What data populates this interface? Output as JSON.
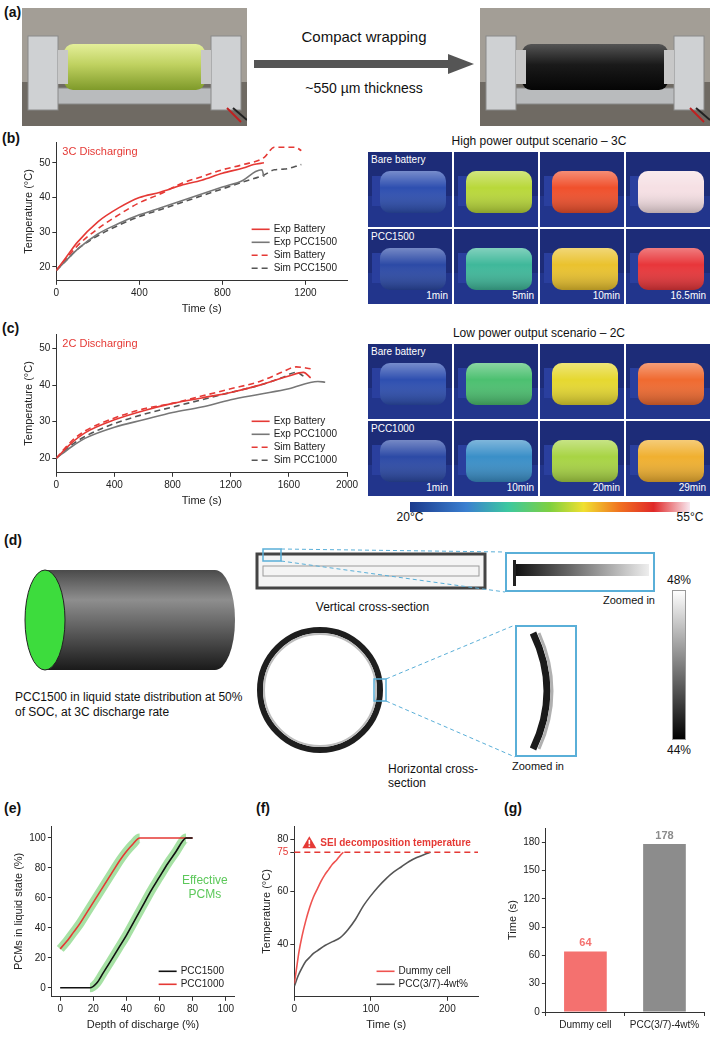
{
  "figure": {
    "a": {
      "panel": "(a)",
      "arrow_text": "Compact wrapping",
      "thickness": "~550 µm thickness"
    },
    "b_images": {
      "title": "High power output scenario – 3C",
      "rows": [
        "Bare battery",
        "PCC1500"
      ],
      "times": [
        "1min",
        "5min",
        "10min",
        "16.5min"
      ]
    },
    "c_images": {
      "title": "Low power output scenario – 2C",
      "rows": [
        "Bare battery",
        "PCC1000"
      ],
      "times": [
        "1min",
        "10min",
        "20min",
        "29min"
      ]
    },
    "colorbar": {
      "range": [
        20,
        55
      ],
      "ticks": [
        {
          "value": 20,
          "label": "20°C"
        },
        {
          "value": 55,
          "label": "55°C"
        }
      ]
    },
    "d": {
      "panel": "(d)",
      "caption": "PCC1500 in liquid state distribution at 50% of SOC, at 3C discharge rate",
      "vertical": "Vertical cross-section",
      "horizontal": "Horizontal cross-section",
      "zoom": "Zoomed in",
      "colorbar": {
        "range": [
          44,
          48
        ],
        "ticks": [
          {
            "value": 48,
            "label": "48%"
          },
          {
            "value": 44,
            "label": "44%"
          }
        ]
      }
    }
  },
  "chart_data": [
    {
      "panel": "(b)",
      "type": "line",
      "title": "3C Discharging",
      "xlabel": "Time (s)",
      "ylabel": "Temperature (°C)",
      "xlim": [
        0,
        1400
      ],
      "xticks": [
        0,
        400,
        800,
        1200
      ],
      "ylim": [
        16,
        56
      ],
      "yticks": [
        20,
        30,
        40,
        50
      ],
      "grid": false,
      "legend": "bottom right",
      "series": [
        {
          "name": "Exp Battery",
          "color": "#e53935",
          "line_style": "solid",
          "x": [
            0,
            50,
            100,
            200,
            300,
            400,
            500,
            600,
            700,
            800,
            900,
            950,
            1000
          ],
          "values": [
            19,
            23,
            27,
            33,
            37,
            40,
            41.5,
            43.5,
            45,
            47,
            48.5,
            49.5,
            50
          ]
        },
        {
          "name": "Exp PCC1500",
          "color": "#777777",
          "line_style": "solid",
          "x": [
            0,
            50,
            100,
            200,
            300,
            400,
            500,
            600,
            700,
            800,
            900,
            960,
            990,
            1000
          ],
          "values": [
            19,
            22,
            25,
            29.5,
            32.5,
            35,
            37,
            39,
            41,
            43,
            45,
            47.5,
            48,
            46
          ]
        },
        {
          "name": "Sim Battery",
          "color": "#e53935",
          "line_style": "dashed",
          "x": [
            0,
            50,
            100,
            200,
            300,
            400,
            500,
            600,
            700,
            800,
            900,
            1000,
            1050,
            1150,
            1180
          ],
          "values": [
            19,
            22.5,
            26,
            31,
            35,
            38.5,
            41,
            44,
            46,
            48,
            49.5,
            51.5,
            54.5,
            54.5,
            53.5
          ]
        },
        {
          "name": "Sim PCC1500",
          "color": "#555555",
          "line_style": "dashed",
          "x": [
            0,
            50,
            100,
            200,
            300,
            400,
            500,
            600,
            700,
            800,
            900,
            1000,
            1050,
            1100,
            1180
          ],
          "values": [
            19,
            22,
            25,
            29,
            32,
            34.5,
            36.5,
            38.5,
            40.5,
            42.5,
            44.5,
            46.5,
            48,
            48.2,
            49.5
          ]
        }
      ]
    },
    {
      "panel": "(c)",
      "type": "line",
      "title": "2C Discharging",
      "xlabel": "Time (s)",
      "ylabel": "Temperature (°C)",
      "xlim": [
        0,
        2000
      ],
      "xticks": [
        0,
        400,
        800,
        1200,
        1600,
        2000
      ],
      "ylim": [
        16,
        54
      ],
      "yticks": [
        20,
        30,
        40,
        50
      ],
      "grid": false,
      "legend": "bottom right",
      "series": [
        {
          "name": "Exp Battery",
          "color": "#e53935",
          "line_style": "solid",
          "x": [
            0,
            100,
            200,
            400,
            600,
            800,
            1000,
            1200,
            1400,
            1600,
            1700,
            1750
          ],
          "values": [
            20,
            24,
            27,
            30.5,
            33,
            35,
            36.5,
            38,
            40,
            42.5,
            43.5,
            42
          ]
        },
        {
          "name": "Exp PCC1000",
          "color": "#777777",
          "line_style": "solid",
          "x": [
            0,
            100,
            200,
            400,
            600,
            800,
            1000,
            1200,
            1400,
            1600,
            1800,
            1850
          ],
          "values": [
            20,
            23,
            25.5,
            28.5,
            30.5,
            32.5,
            34,
            36,
            37.5,
            39,
            41,
            40.8
          ]
        },
        {
          "name": "Sim Battery",
          "color": "#e53935",
          "line_style": "dashed",
          "x": [
            0,
            100,
            200,
            400,
            600,
            800,
            1000,
            1200,
            1400,
            1550,
            1650,
            1750
          ],
          "values": [
            20,
            24.5,
            27.5,
            31,
            33.5,
            35,
            37,
            39,
            41,
            43.5,
            45,
            44.5
          ]
        },
        {
          "name": "Sim PCC1000",
          "color": "#555555",
          "line_style": "dashed",
          "x": [
            0,
            100,
            200,
            400,
            600,
            800,
            1000,
            1200,
            1400,
            1550,
            1650,
            1700
          ],
          "values": [
            20,
            23.5,
            26,
            29.5,
            32,
            34,
            36,
            38,
            40,
            42,
            43.5,
            42.5
          ]
        }
      ]
    },
    {
      "panel": "(e)",
      "type": "line",
      "xlabel": "Depth of discharge (%)",
      "ylabel": "PCMs in liquid state (%)",
      "xlim": [
        -5,
        105
      ],
      "xticks": [
        0,
        20,
        40,
        60,
        80,
        100
      ],
      "ylim": [
        -6,
        108
      ],
      "yticks": [
        0,
        20,
        40,
        60,
        80,
        100
      ],
      "grid": false,
      "legend": "bottom right",
      "annotation": {
        "text": "Effective PCMs",
        "color": "#5cc85a"
      },
      "series": [
        {
          "name": "PCC1500",
          "color": "#111111",
          "line_style": "solid",
          "x": [
            0,
            10,
            18,
            22,
            26,
            30,
            35,
            40,
            45,
            50,
            55,
            60,
            65,
            70,
            74,
            76,
            80
          ],
          "values": [
            0,
            0,
            0,
            3,
            10,
            17,
            26,
            35,
            45,
            55,
            65,
            74,
            83,
            91,
            98,
            100,
            100
          ]
        },
        {
          "name": "PCC1000",
          "color": "#e53935",
          "line_style": "solid",
          "x": [
            0,
            4,
            8,
            12,
            16,
            20,
            24,
            28,
            32,
            36,
            40,
            44,
            48,
            55,
            65,
            80
          ],
          "values": [
            26,
            31,
            37,
            43,
            50,
            57,
            64,
            71,
            78,
            85,
            91,
            96,
            100,
            100,
            100,
            100
          ]
        }
      ]
    },
    {
      "panel": "(f)",
      "type": "line",
      "xlabel": "Time (s)",
      "ylabel": "Temperature (°C)",
      "xlim": [
        0,
        240
      ],
      "xticks": [
        0,
        100,
        200
      ],
      "ylim": [
        20,
        85
      ],
      "yticks": [
        40,
        60,
        75,
        80
      ],
      "grid": false,
      "legend": "bottom right",
      "threshold": {
        "value": 75,
        "label": "SEI decomposition temperature",
        "color": "#e53935"
      },
      "series": [
        {
          "name": "Dummy cell",
          "color": "#ef5350",
          "line_style": "solid",
          "x": [
            0,
            3,
            6,
            10,
            15,
            20,
            25,
            30,
            35,
            40,
            45,
            50,
            55,
            60,
            64
          ],
          "values": [
            25,
            31,
            37,
            43,
            49,
            54,
            58,
            61,
            64,
            66.5,
            68.5,
            70.5,
            72,
            73.8,
            75
          ]
        },
        {
          "name": "PCC(3/7)-4wt%",
          "color": "#555555",
          "line_style": "solid",
          "x": [
            0,
            5,
            10,
            15,
            20,
            25,
            30,
            40,
            50,
            60,
            70,
            80,
            90,
            100,
            110,
            120,
            130,
            140,
            150,
            160,
            170,
            178
          ],
          "values": [
            24,
            28,
            31,
            33.5,
            35,
            36.5,
            37.5,
            39.5,
            41,
            42.5,
            45.5,
            49.5,
            54.5,
            58.5,
            62,
            65,
            67.5,
            69.5,
            71.5,
            73,
            74.2,
            75
          ]
        }
      ]
    },
    {
      "panel": "(g)",
      "type": "bar",
      "categories": [
        "Dummy cell",
        "PCC(3/7)-4wt%"
      ],
      "values": [
        64,
        178
      ],
      "colors": [
        "#f4716f",
        "#8c8c8c"
      ],
      "ylabel": "Time (s)",
      "ylim": [
        0,
        195
      ],
      "yticks": [
        0,
        30,
        60,
        90,
        120,
        150,
        180
      ],
      "grid": false,
      "data_labels": true
    }
  ]
}
